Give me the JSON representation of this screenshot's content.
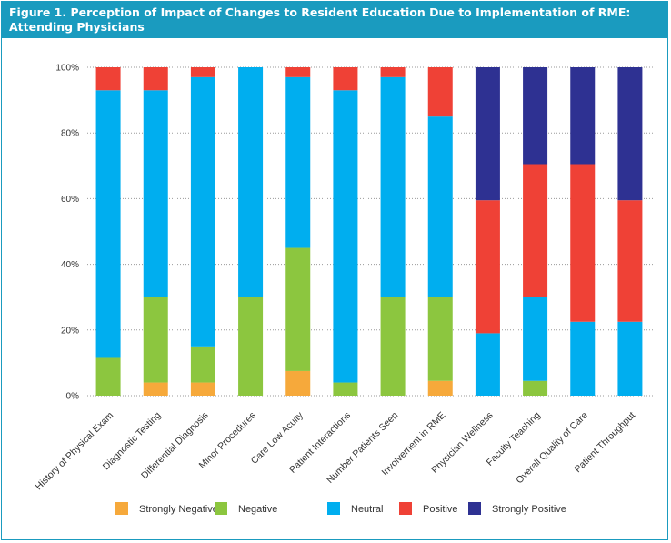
{
  "title": "Figure 1. Perception of Impact of Changes to Resident Education Due to Implementation of RME: Attending Physicians",
  "chart_data": {
    "type": "bar",
    "stacked": true,
    "categories": [
      "History of Physical Exam",
      "Diagnostic Testing",
      "Differential Diagnosis",
      "Minor Procedures",
      "Care Low Acuity",
      "Patient Interactions",
      "Number Patients Seen",
      "Involvement in RME",
      "Physician Wellness",
      "Faculty Teaching",
      "Overall Quality of Care",
      "Patient Throughput"
    ],
    "series": [
      {
        "name": "Strongly Negative",
        "color": "#f6a93b",
        "values": [
          0,
          4,
          4,
          0,
          7.5,
          0,
          0,
          4.5,
          0,
          0,
          0,
          0
        ]
      },
      {
        "name": "Negative",
        "color": "#8cc63f",
        "values": [
          11.5,
          26,
          11,
          30,
          37.5,
          4,
          30,
          25.5,
          0,
          4.5,
          0,
          0
        ]
      },
      {
        "name": "Neutral",
        "color": "#00aeef",
        "values": [
          81.5,
          63,
          82,
          70,
          52,
          89,
          67,
          55,
          19,
          25.5,
          22.5,
          22.5
        ]
      },
      {
        "name": "Positive",
        "color": "#ef4136",
        "values": [
          7,
          7,
          3,
          0,
          3,
          7,
          3,
          15,
          40.5,
          40.5,
          48,
          37
        ]
      },
      {
        "name": "Strongly Positive",
        "color": "#2e3192",
        "values": [
          0,
          0,
          0,
          0,
          0,
          0,
          0,
          0,
          40.5,
          29.5,
          29.5,
          40.5
        ]
      }
    ],
    "ylim": [
      0,
      100
    ],
    "yticks": [
      "0%",
      "20%",
      "40%",
      "60%",
      "80%",
      "100%"
    ],
    "grid": "horizontal dotted",
    "legend_position": "bottom"
  }
}
